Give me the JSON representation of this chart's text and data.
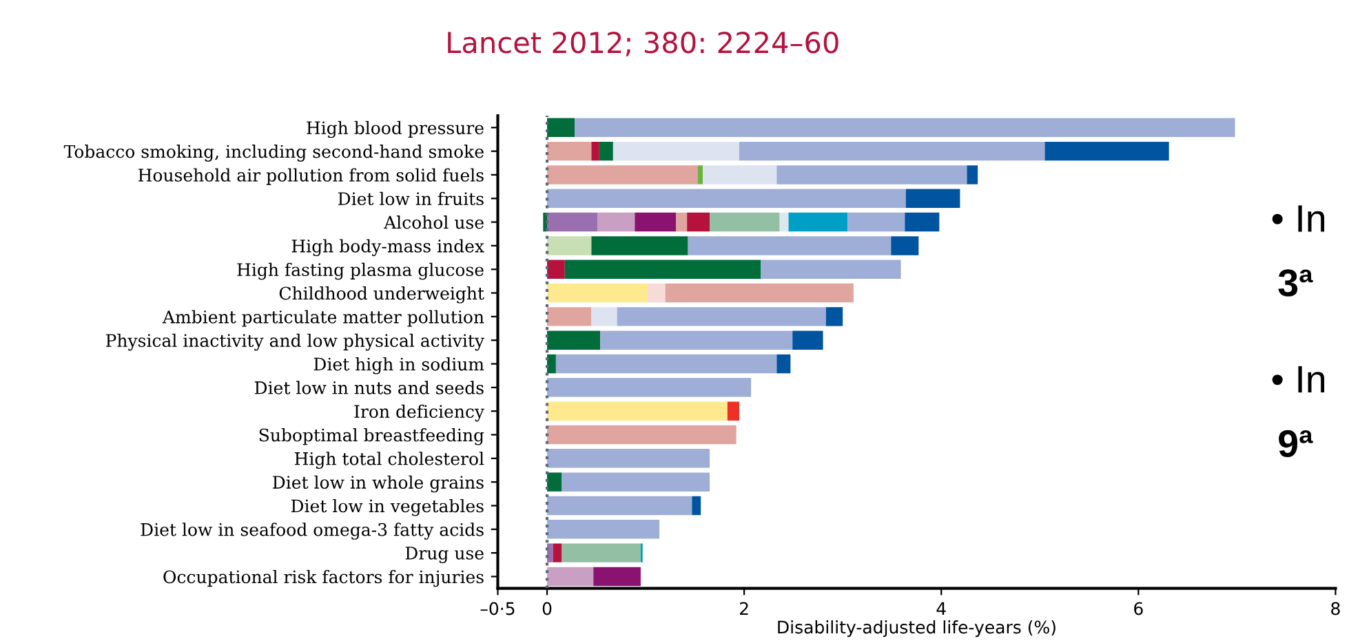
{
  "chart_data": {
    "type": "bar",
    "orientation": "horizontal",
    "stacked": true,
    "title": "Lancet 2012; 380: 2224–60",
    "xlabel": "Disability-adjusted life-years (%)",
    "categories": [
      "High blood pressure",
      "Tobacco smoking, including second-hand smoke",
      "Household air pollution from solid fuels",
      "Diet low in fruits",
      "Alcohol use",
      "High body-mass index",
      "High fasting plasma glucose",
      "Childhood underweight",
      "Ambient particulate matter pollution",
      "Physical inactivity and low physical activity",
      "Diet high in sodium",
      "Diet low in nuts and seeds",
      "Iron deficiency",
      "Suboptimal breastfeeding",
      "High total cholesterol",
      "Diet low in whole grains",
      "Diet low in vegetables",
      "Diet low in seafood omega-3 fatty acids",
      "Drug use",
      "Occupational risk factors for injuries"
    ],
    "series": [
      {
        "values": [
          null,
          null,
          null,
          null,
          -0.04,
          null,
          null,
          null,
          null,
          null,
          null,
          null,
          null,
          null,
          null,
          null,
          null,
          null,
          null,
          null
        ],
        "colors": [
          null,
          null,
          null,
          null,
          "#006d3a",
          null,
          null,
          null,
          null,
          null,
          null,
          null,
          null,
          null,
          null,
          null,
          null,
          null,
          null,
          null
        ]
      },
      {
        "values": [
          0.28,
          0.45,
          1.53,
          3.64,
          0.51,
          0.45,
          0.18,
          1.02,
          0.45,
          0.54,
          0.09,
          2.07,
          1.83,
          1.92,
          1.65,
          0.15,
          1.47,
          1.14,
          0.06,
          0.47
        ],
        "colors": [
          "#006d3a",
          "#e0a59e",
          "#e0a59e",
          "#9eaed6",
          "#9a6fb0",
          "#c8dfb5",
          "#b5123e",
          "#ffe98f",
          "#e0a59e",
          "#006d3a",
          "#006d3a",
          "#9eaed6",
          "#ffe98f",
          "#e0a59e",
          "#9eaed6",
          "#006d3a",
          "#9eaed6",
          "#9eaed6",
          "#9a6fb0",
          "#c9a0c4"
        ]
      },
      {
        "values": [
          6.7,
          0.08,
          0.05,
          0.55,
          0.38,
          0.98,
          1.99,
          0.18,
          0.26,
          1.95,
          2.24,
          null,
          0.12,
          null,
          null,
          1.5,
          0.09,
          null,
          0.09,
          0.48
        ],
        "colors": [
          "#9eaed6",
          "#b5123e",
          "#6bb33f",
          "#0054a0",
          "#c9a0c4",
          "#006d3a",
          "#006d3a",
          "#f5dcd8",
          "#dde3f0",
          "#9eaed6",
          "#9eaed6",
          null,
          "#ee3124",
          null,
          null,
          "#9eaed6",
          "#0054a0",
          null,
          "#b5123e",
          "#8b1370"
        ]
      },
      {
        "values": [
          null,
          0.14,
          0.75,
          null,
          0.42,
          2.06,
          1.42,
          1.91,
          2.12,
          0.31,
          0.14,
          null,
          null,
          null,
          null,
          null,
          null,
          null,
          0.8,
          null
        ],
        "colors": [
          null,
          "#006d3a",
          "#dde3f0",
          null,
          "#8b1370",
          "#9eaed6",
          "#9eaed6",
          "#e0a59e",
          "#9eaed6",
          "#0054a0",
          "#0054a0",
          null,
          null,
          null,
          null,
          null,
          null,
          null,
          "#93c0a4",
          null
        ]
      },
      {
        "values": [
          null,
          1.28,
          1.93,
          null,
          0.11,
          0.28,
          null,
          null,
          0.17,
          null,
          null,
          null,
          null,
          null,
          null,
          null,
          null,
          null,
          0.02,
          null
        ],
        "colors": [
          null,
          "#dde3f0",
          "#9eaed6",
          null,
          "#e0a59e",
          "#0054a0",
          null,
          null,
          "#0054a0",
          null,
          null,
          null,
          null,
          null,
          null,
          null,
          null,
          null,
          "#00a0c6",
          null
        ]
      },
      {
        "values": [
          null,
          3.1,
          0.11,
          null,
          0.23,
          null,
          null,
          null,
          null,
          null,
          null,
          null,
          null,
          null,
          null,
          null,
          null,
          null,
          null,
          null
        ],
        "colors": [
          null,
          "#9eaed6",
          "#0054a0",
          null,
          "#b5123e",
          null,
          null,
          null,
          null,
          null,
          null,
          null,
          null,
          null,
          null,
          null,
          null,
          null,
          null,
          null
        ]
      },
      {
        "values": [
          null,
          1.26,
          null,
          null,
          0.71,
          null,
          null,
          null,
          null,
          null,
          null,
          null,
          null,
          null,
          null,
          null,
          null,
          null,
          null,
          null
        ],
        "colors": [
          null,
          "#0054a0",
          null,
          null,
          "#93c0a4",
          null,
          null,
          null,
          null,
          null,
          null,
          null,
          null,
          null,
          null,
          null,
          null,
          null,
          null,
          null
        ]
      },
      {
        "values": [
          null,
          null,
          null,
          null,
          0.09,
          null,
          null,
          null,
          null,
          null,
          null,
          null,
          null,
          null,
          null,
          null,
          null,
          null,
          null,
          null
        ],
        "colors": [
          null,
          null,
          null,
          null,
          "#dde8ee",
          null,
          null,
          null,
          null,
          null,
          null,
          null,
          null,
          null,
          null,
          null,
          null,
          null,
          null,
          null
        ]
      },
      {
        "values": [
          null,
          null,
          null,
          null,
          0.6,
          null,
          null,
          null,
          null,
          null,
          null,
          null,
          null,
          null,
          null,
          null,
          null,
          null,
          null,
          null
        ],
        "colors": [
          null,
          null,
          null,
          null,
          "#00a0c6",
          null,
          null,
          null,
          null,
          null,
          null,
          null,
          null,
          null,
          null,
          null,
          null,
          null,
          null,
          null
        ]
      },
      {
        "values": [
          null,
          null,
          null,
          null,
          0.58,
          null,
          null,
          null,
          null,
          null,
          null,
          null,
          null,
          null,
          null,
          null,
          null,
          null,
          null,
          null
        ],
        "colors": [
          null,
          null,
          null,
          null,
          "#9eaed6",
          null,
          null,
          null,
          null,
          null,
          null,
          null,
          null,
          null,
          null,
          null,
          null,
          null,
          null,
          null
        ]
      },
      {
        "values": [
          null,
          null,
          null,
          null,
          0.35,
          null,
          null,
          null,
          null,
          null,
          null,
          null,
          null,
          null,
          null,
          null,
          null,
          null,
          null,
          null
        ],
        "colors": [
          null,
          null,
          null,
          null,
          "#0054a0",
          null,
          null,
          null,
          null,
          null,
          null,
          null,
          null,
          null,
          null,
          null,
          null,
          null,
          null,
          null
        ]
      }
    ],
    "xlim": [
      -0.5,
      8
    ],
    "xticks": [
      {
        "value": -0.5,
        "label": "–0·5"
      },
      0,
      2,
      4,
      6,
      8
    ],
    "ref_lines": [
      {
        "axis": "x",
        "value": 0,
        "line_style": "dotted",
        "color": "#5a6a7a"
      }
    ],
    "annotations": [
      "• In",
      "3ª",
      "• In",
      "9ª"
    ],
    "grid": false,
    "legend": false
  }
}
